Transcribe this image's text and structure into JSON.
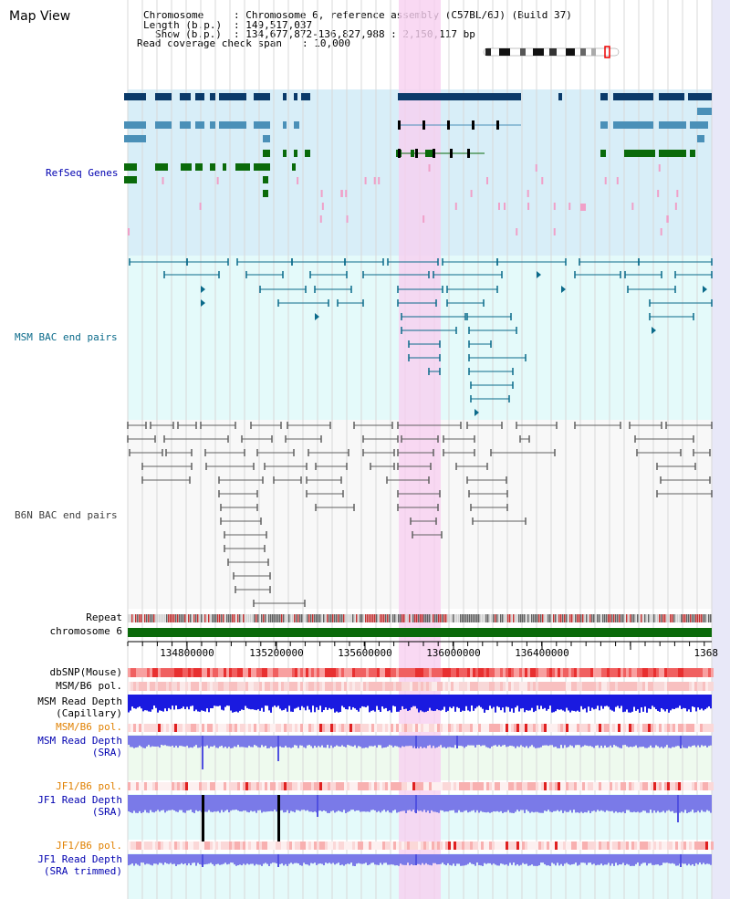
{
  "title": "Map View",
  "info": {
    "chromosome_key": "Chromosome",
    "chromosome_val": ": Chromosome 6, reference assembly (C57BL/6J) (Build 37)",
    "length_key": "Length (b.p.)",
    "length_val": ": 149,517,037",
    "show_key": "Show (b.p.)",
    "show_val": ": 134,677,872-136,827,988 : 2,150,117 bp",
    "coverage_key": "Read coverage check span",
    "coverage_val": ": 10,000"
  },
  "tracks": {
    "refseq": "RefSeq Genes",
    "msm_bac": "MSM BAC end pairs",
    "b6n_bac": "B6N BAC end pairs",
    "repeat": "Repeat",
    "chromosome": "chromosome 6",
    "dbsnp": "dbSNP(Mouse)",
    "msm_b6_pol": "MSM/B6 pol.",
    "msm_depth_cap_1": "MSM Read Depth",
    "msm_depth_cap_2": "(Capillary)",
    "msm_b6_pol_2": "MSM/B6 pol.",
    "msm_depth_sra_1": "MSM Read Depth",
    "msm_depth_sra_2": "(SRA)",
    "jf1_b6_pol": "JF1/B6 pol.",
    "jf1_depth_sra_1": "JF1 Read Depth",
    "jf1_depth_sra_2": "(SRA)",
    "jf1_b6_pol_2": "JF1/B6 pol.",
    "jf1_depth_trim_1": "JF1 Read Depth",
    "jf1_depth_trim_2": "(SRA trimmed)"
  },
  "axis": {
    "ticks": [
      "134800000",
      "135200000",
      "135600000",
      "136000000",
      "136400000",
      "1368"
    ]
  },
  "colors": {
    "refseq_bg": "#d8eef8",
    "bac_bg": "#e4fafa",
    "b6n_bg": "#f8f8f8",
    "highlight": "#f8d8f0",
    "refseq_dark": "#0a3a6a",
    "refseq_mid": "#4a90b8",
    "refseq_green": "#0a6a0a",
    "msm_line": "#0a6a8a",
    "b6n_line": "#606060",
    "depth_blue": "#1a1ae0",
    "depth_light": "#7a7ae8",
    "label_blue": "#0000b0",
    "label_orange": "#e08000"
  }
}
